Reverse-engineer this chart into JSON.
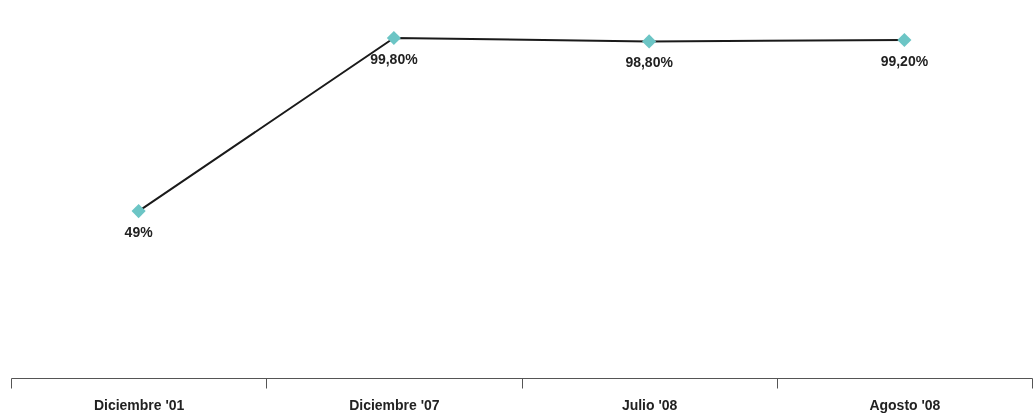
{
  "chart_data": {
    "type": "line",
    "categories": [
      "Diciembre '01",
      "Diciembre '07",
      "Julio '08",
      "Agosto '08"
    ],
    "series": [
      {
        "color": "#1a1a1a",
        "values": [
          49,
          99.8,
          98.8,
          99.2
        ],
        "value_labels": [
          "49%",
          "99,80%",
          "98,80%",
          "99,20%"
        ],
        "marker": "none"
      },
      {
        "type": "scatter",
        "color": "#6cc5c5",
        "marker": "diamond",
        "values": [
          49,
          99.8,
          98.8,
          99.2
        ]
      }
    ],
    "line_style": "solid",
    "tick_labels": "x",
    "grid": false
  }
}
